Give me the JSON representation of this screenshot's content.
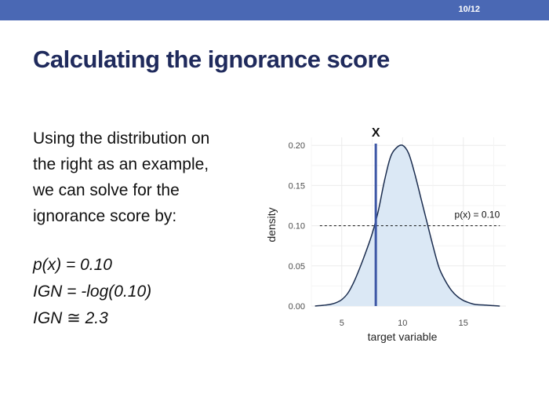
{
  "header": {
    "page_number": "10/12",
    "bar_color": "#4a68b4"
  },
  "slide": {
    "title": "Calculating the ignorance score",
    "intro_lines": [
      "Using the distribution on",
      "the right as an example,",
      "we can solve for the",
      "ignorance score by:"
    ],
    "formulas": [
      "p(x) = 0.10",
      "IGN = -log(0.10)",
      "IGN ≅ 2.3"
    ]
  },
  "chart_data": {
    "type": "area",
    "xlabel": "target variable",
    "ylabel": "density",
    "xlim": [
      2.5,
      18.5
    ],
    "ylim": [
      0,
      0.21
    ],
    "x_ticks": [
      5,
      10,
      15
    ],
    "x_tick_labels": [
      "5",
      "10",
      "15"
    ],
    "y_ticks": [
      0.0,
      0.05,
      0.1,
      0.15,
      0.2
    ],
    "y_tick_labels": [
      "0.00",
      "0.05",
      "0.10",
      "0.15",
      "0.20"
    ],
    "grid": true,
    "series": [
      {
        "x": [
          2.8,
          3.5,
          4.0,
          4.5,
          5.0,
          5.5,
          6.0,
          6.5,
          7.0,
          7.5,
          8.0,
          8.5,
          9.0,
          9.5,
          10.0,
          10.5,
          11.0,
          11.5,
          12.0,
          12.5,
          13.0,
          13.5,
          14.0,
          14.5,
          15.0,
          15.5,
          16.0,
          17.0,
          18.0
        ],
        "y": [
          0.0,
          0.001,
          0.002,
          0.004,
          0.008,
          0.016,
          0.03,
          0.048,
          0.068,
          0.09,
          0.118,
          0.155,
          0.185,
          0.197,
          0.2,
          0.19,
          0.165,
          0.135,
          0.105,
          0.075,
          0.048,
          0.032,
          0.02,
          0.012,
          0.007,
          0.004,
          0.002,
          0.001,
          0.0
        ]
      }
    ],
    "fill_color": "#dbe8f5",
    "line_color": "#1b2d4f",
    "marker": {
      "label": "X",
      "x": 7.8,
      "color": "#3e58a6"
    },
    "reference": {
      "y": 0.1,
      "label": "p(x) = 0.10"
    }
  }
}
